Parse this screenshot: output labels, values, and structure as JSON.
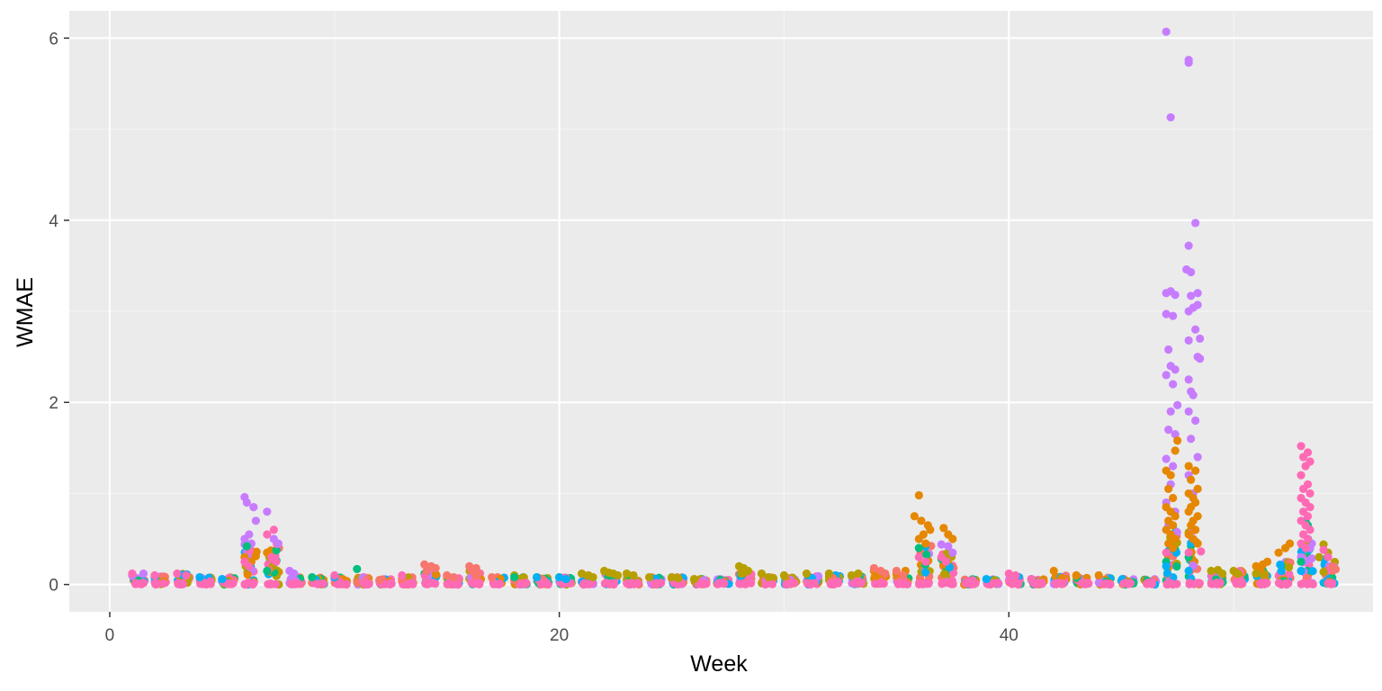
{
  "chart_data": {
    "type": "scatter",
    "title": "",
    "xlabel": "Week",
    "ylabel": "WMAE",
    "xlim": [
      -1.8,
      56.2
    ],
    "ylim": [
      -0.3,
      6.3
    ],
    "x_ticks": [
      0,
      20,
      40
    ],
    "y_ticks": [
      0,
      2,
      4,
      6
    ],
    "x_tick_labels": [
      "0",
      "20",
      "40"
    ],
    "y_tick_labels": [
      "0",
      "2",
      "4",
      "6"
    ],
    "grid": true,
    "legend": "none",
    "colors": {
      "panel_background": "#ebebeb",
      "grid_major": "#ffffff",
      "grid_minor": "#f5f5f5",
      "tick_mark": "#333333"
    },
    "series": [
      {
        "color": "#c77cff",
        "points": [
          [
            1.0,
            0.1
          ],
          [
            1.5,
            0.12
          ],
          [
            6.0,
            0.96
          ],
          [
            6.1,
            0.9
          ],
          [
            6.4,
            0.85
          ],
          [
            6.5,
            0.7
          ],
          [
            6.2,
            0.55
          ],
          [
            6.0,
            0.5
          ],
          [
            6.3,
            0.45
          ],
          [
            7.0,
            0.8
          ],
          [
            7.3,
            0.5
          ],
          [
            7.5,
            0.45
          ],
          [
            8.0,
            0.15
          ],
          [
            8.2,
            0.12
          ],
          [
            37.0,
            0.44
          ],
          [
            37.3,
            0.42
          ],
          [
            37.5,
            0.35
          ],
          [
            47.0,
            3.2
          ],
          [
            47.2,
            3.22
          ],
          [
            47.4,
            3.18
          ],
          [
            47.0,
            2.97
          ],
          [
            47.3,
            2.95
          ],
          [
            47.1,
            2.58
          ],
          [
            47.2,
            2.4
          ],
          [
            47.4,
            2.36
          ],
          [
            47.0,
            2.3
          ],
          [
            47.3,
            2.2
          ],
          [
            47.5,
            1.97
          ],
          [
            47.2,
            1.9
          ],
          [
            47.1,
            1.7
          ],
          [
            47.4,
            1.65
          ],
          [
            47.0,
            1.38
          ],
          [
            47.3,
            1.3
          ],
          [
            47.2,
            1.1
          ],
          [
            47.0,
            0.9
          ],
          [
            47.4,
            0.8
          ],
          [
            47.1,
            0.65
          ],
          [
            47.0,
            6.07
          ],
          [
            47.2,
            5.13
          ],
          [
            48.0,
            5.73
          ],
          [
            48.0,
            5.76
          ],
          [
            48.3,
            3.97
          ],
          [
            48.0,
            3.72
          ],
          [
            47.9,
            3.46
          ],
          [
            48.1,
            3.43
          ],
          [
            48.4,
            3.2
          ],
          [
            48.1,
            3.17
          ],
          [
            48.4,
            3.07
          ],
          [
            48.2,
            3.04
          ],
          [
            48.0,
            3.0
          ],
          [
            48.3,
            2.8
          ],
          [
            48.5,
            2.7
          ],
          [
            48.0,
            2.68
          ],
          [
            48.4,
            2.5
          ],
          [
            48.5,
            2.48
          ],
          [
            48.0,
            2.25
          ],
          [
            48.1,
            2.12
          ],
          [
            48.2,
            2.08
          ],
          [
            48.0,
            1.9
          ],
          [
            48.3,
            1.8
          ],
          [
            48.1,
            1.6
          ],
          [
            48.4,
            1.4
          ],
          [
            48.0,
            1.2
          ],
          [
            48.2,
            1.0
          ],
          [
            53.0,
            0.3
          ],
          [
            53.4,
            0.4
          ]
        ]
      },
      {
        "color": "#e58700",
        "points": [
          [
            6.0,
            0.3
          ],
          [
            6.3,
            0.25
          ],
          [
            7.0,
            0.35
          ],
          [
            7.2,
            0.3
          ],
          [
            36.0,
            0.98
          ],
          [
            35.8,
            0.75
          ],
          [
            36.1,
            0.7
          ],
          [
            36.4,
            0.65
          ],
          [
            36.5,
            0.6
          ],
          [
            36.2,
            0.55
          ],
          [
            36.0,
            0.5
          ],
          [
            36.3,
            0.45
          ],
          [
            37.1,
            0.62
          ],
          [
            37.3,
            0.55
          ],
          [
            37.5,
            0.5
          ],
          [
            47.0,
            1.25
          ],
          [
            47.2,
            1.2
          ],
          [
            47.5,
            1.58
          ],
          [
            47.4,
            1.47
          ],
          [
            47.1,
            1.05
          ],
          [
            47.3,
            0.95
          ],
          [
            47.0,
            0.85
          ],
          [
            47.2,
            0.8
          ],
          [
            47.4,
            0.75
          ],
          [
            47.1,
            0.7
          ],
          [
            47.3,
            0.65
          ],
          [
            47.0,
            0.6
          ],
          [
            47.2,
            0.55
          ],
          [
            47.4,
            0.5
          ],
          [
            47.1,
            0.45
          ],
          [
            47.3,
            0.4
          ],
          [
            48.0,
            1.3
          ],
          [
            48.3,
            1.25
          ],
          [
            48.1,
            1.15
          ],
          [
            48.4,
            1.05
          ],
          [
            48.0,
            1.0
          ],
          [
            48.2,
            0.95
          ],
          [
            48.3,
            0.9
          ],
          [
            48.1,
            0.85
          ],
          [
            48.0,
            0.8
          ],
          [
            48.4,
            0.75
          ],
          [
            48.2,
            0.7
          ],
          [
            48.1,
            0.65
          ],
          [
            48.3,
            0.6
          ],
          [
            48.0,
            0.55
          ],
          [
            48.2,
            0.5
          ],
          [
            48.4,
            0.45
          ],
          [
            34.0,
            0.15
          ],
          [
            34.3,
            0.12
          ],
          [
            35.0,
            0.12
          ],
          [
            35.4,
            0.15
          ],
          [
            42.0,
            0.15
          ],
          [
            43.0,
            0.1
          ],
          [
            44.0,
            0.1
          ],
          [
            51.0,
            0.2
          ],
          [
            51.3,
            0.22
          ],
          [
            51.5,
            0.25
          ],
          [
            52.0,
            0.35
          ],
          [
            52.3,
            0.4
          ],
          [
            52.5,
            0.45
          ]
        ]
      },
      {
        "color": "#f8766d",
        "points": [
          [
            14.0,
            0.22
          ],
          [
            14.3,
            0.2
          ],
          [
            14.5,
            0.18
          ],
          [
            14.1,
            0.15
          ],
          [
            15.0,
            0.1
          ],
          [
            15.3,
            0.08
          ],
          [
            16.0,
            0.2
          ],
          [
            16.3,
            0.18
          ],
          [
            16.1,
            0.15
          ],
          [
            16.4,
            0.12
          ],
          [
            17.0,
            0.08
          ],
          [
            34.0,
            0.18
          ],
          [
            34.3,
            0.15
          ],
          [
            34.5,
            0.12
          ],
          [
            35.0,
            0.15
          ],
          [
            35.3,
            0.1
          ],
          [
            12.0,
            0.05
          ],
          [
            13.0,
            0.06
          ],
          [
            18.0,
            0.05
          ]
        ]
      },
      {
        "color": "#b79f00",
        "points": [
          [
            21.0,
            0.12
          ],
          [
            21.3,
            0.1
          ],
          [
            21.5,
            0.08
          ],
          [
            22.0,
            0.15
          ],
          [
            22.2,
            0.13
          ],
          [
            22.4,
            0.12
          ],
          [
            22.6,
            0.1
          ],
          [
            23.0,
            0.12
          ],
          [
            23.3,
            0.1
          ],
          [
            24.0,
            0.08
          ],
          [
            25.0,
            0.08
          ],
          [
            25.3,
            0.07
          ],
          [
            26.0,
            0.06
          ],
          [
            28.0,
            0.2
          ],
          [
            28.2,
            0.18
          ],
          [
            28.4,
            0.15
          ],
          [
            28.1,
            0.12
          ],
          [
            29.0,
            0.12
          ],
          [
            29.3,
            0.08
          ],
          [
            30.0,
            0.1
          ],
          [
            31.0,
            0.12
          ],
          [
            32.0,
            0.12
          ],
          [
            33.0,
            0.1
          ],
          [
            33.3,
            0.12
          ],
          [
            18.0,
            0.1
          ],
          [
            19.0,
            0.08
          ],
          [
            20.0,
            0.08
          ],
          [
            49.0,
            0.15
          ],
          [
            49.3,
            0.16
          ],
          [
            49.5,
            0.12
          ],
          [
            50.0,
            0.15
          ],
          [
            50.2,
            0.12
          ],
          [
            51.0,
            0.12
          ],
          [
            54.0,
            0.44
          ],
          [
            54.2,
            0.35
          ],
          [
            53.8,
            0.3
          ]
        ]
      },
      {
        "color": "#00bf7d",
        "points": [
          [
            6.1,
            0.42
          ],
          [
            7.0,
            0.15
          ],
          [
            11.0,
            0.17
          ],
          [
            9.0,
            0.08
          ],
          [
            37.0,
            0.28
          ],
          [
            36.0,
            0.4
          ],
          [
            18.0,
            0.08
          ],
          [
            47.0,
            0.25
          ],
          [
            48.0,
            0.3
          ],
          [
            53.0,
            0.25
          ],
          [
            53.2,
            0.7
          ],
          [
            53.3,
            0.65
          ]
        ]
      },
      {
        "color": "#00b0f6",
        "points": [
          [
            4.0,
            0.08
          ],
          [
            5.0,
            0.06
          ],
          [
            19.0,
            0.08
          ],
          [
            20.0,
            0.08
          ],
          [
            20.3,
            0.06
          ],
          [
            10.0,
            0.08
          ],
          [
            39.0,
            0.06
          ],
          [
            41.0,
            0.06
          ],
          [
            47.0,
            0.2
          ],
          [
            48.0,
            0.15
          ],
          [
            53.0,
            0.15
          ]
        ]
      },
      {
        "color": "#ff6ab5",
        "points": [
          [
            6.0,
            0.25
          ],
          [
            6.2,
            0.2
          ],
          [
            7.0,
            0.55
          ],
          [
            7.3,
            0.6
          ],
          [
            7.2,
            0.3
          ],
          [
            7.4,
            0.25
          ],
          [
            36.0,
            0.3
          ],
          [
            36.3,
            0.25
          ],
          [
            37.0,
            0.3
          ],
          [
            37.2,
            0.25
          ],
          [
            40.0,
            0.12
          ],
          [
            40.3,
            0.1
          ],
          [
            41.0,
            0.06
          ],
          [
            47.0,
            0.35
          ],
          [
            48.0,
            0.35
          ],
          [
            53.0,
            1.52
          ],
          [
            53.3,
            1.45
          ],
          [
            53.1,
            1.4
          ],
          [
            53.4,
            1.35
          ],
          [
            53.2,
            1.3
          ],
          [
            53.0,
            1.2
          ],
          [
            53.3,
            1.1
          ],
          [
            53.1,
            1.05
          ],
          [
            53.4,
            1.0
          ],
          [
            53.0,
            0.95
          ],
          [
            53.2,
            0.9
          ],
          [
            53.4,
            0.85
          ],
          [
            53.1,
            0.8
          ],
          [
            53.3,
            0.75
          ],
          [
            53.0,
            0.7
          ],
          [
            53.2,
            0.65
          ],
          [
            53.4,
            0.6
          ],
          [
            53.1,
            0.55
          ],
          [
            53.3,
            0.5
          ],
          [
            53.0,
            0.45
          ],
          [
            53.2,
            0.4
          ],
          [
            54.0,
            0.38
          ],
          [
            54.2,
            0.3
          ],
          [
            1.0,
            0.12
          ],
          [
            2.0,
            0.1
          ],
          [
            3.0,
            0.12
          ],
          [
            3.4,
            0.1
          ],
          [
            10.0,
            0.1
          ],
          [
            13.0,
            0.1
          ]
        ]
      }
    ],
    "base_columns": {
      "weeks": [
        1,
        2,
        3,
        4,
        5,
        6,
        7,
        8,
        9,
        10,
        11,
        12,
        13,
        14,
        15,
        16,
        17,
        18,
        19,
        20,
        21,
        22,
        23,
        24,
        25,
        26,
        27,
        28,
        29,
        30,
        31,
        32,
        33,
        34,
        35,
        36,
        37,
        38,
        39,
        40,
        41,
        42,
        43,
        44,
        45,
        46,
        47,
        48,
        49,
        50,
        51,
        52,
        53,
        54
      ],
      "max_values": [
        0.1,
        0.1,
        0.12,
        0.08,
        0.08,
        0.45,
        0.45,
        0.08,
        0.08,
        0.08,
        0.08,
        0.06,
        0.08,
        0.15,
        0.08,
        0.15,
        0.08,
        0.08,
        0.08,
        0.08,
        0.1,
        0.12,
        0.1,
        0.08,
        0.08,
        0.06,
        0.06,
        0.12,
        0.08,
        0.08,
        0.1,
        0.1,
        0.1,
        0.1,
        0.1,
        0.45,
        0.35,
        0.06,
        0.06,
        0.08,
        0.06,
        0.1,
        0.08,
        0.08,
        0.06,
        0.06,
        0.6,
        0.6,
        0.12,
        0.15,
        0.2,
        0.25,
        0.5,
        0.3
      ],
      "colors": [
        "#ff6ab5",
        "#f8766d",
        "#b79f00",
        "#00b0f6",
        "#c77cff",
        "#00bf7d",
        "#e58700"
      ]
    }
  }
}
